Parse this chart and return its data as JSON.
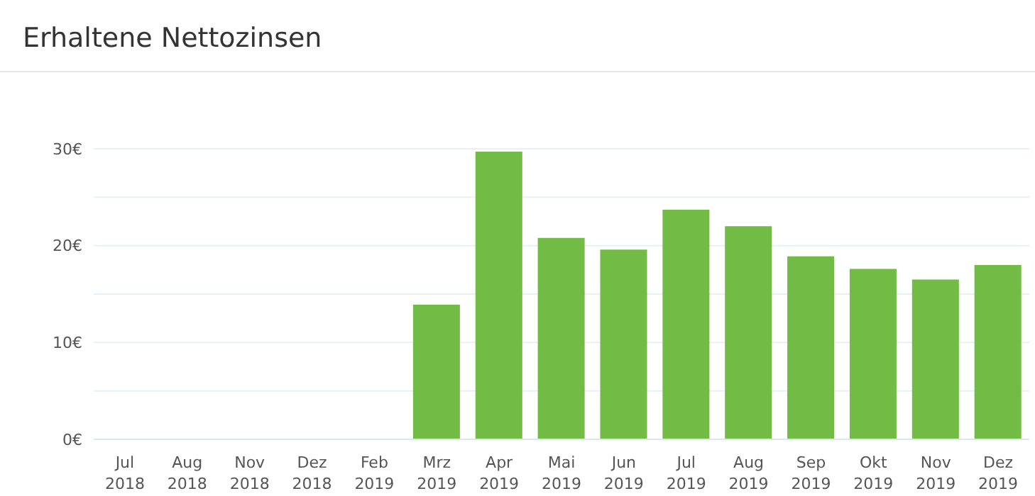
{
  "chart_data": {
    "type": "bar",
    "title": "Erhaltene Nettozinsen",
    "categories": [
      "Jul 2018",
      "Aug 2018",
      "Nov 2018",
      "Dez 2018",
      "Feb 2019",
      "Mrz 2019",
      "Apr 2019",
      "Mai 2019",
      "Jun 2019",
      "Jul 2019",
      "Aug 2019",
      "Sep 2019",
      "Okt 2019",
      "Nov 2019",
      "Dez 2019"
    ],
    "values": [
      0,
      0,
      0,
      0,
      0,
      13.9,
      29.7,
      20.8,
      19.6,
      23.7,
      22.0,
      18.9,
      17.6,
      16.5,
      18.0
    ],
    "color": "#72bb44",
    "ylim": [
      0,
      30
    ],
    "yticks": [
      {
        "value": 0,
        "label": "0€"
      },
      {
        "value": 5,
        "label": null
      },
      {
        "value": 10,
        "label": "10€"
      },
      {
        "value": 15,
        "label": null
      },
      {
        "value": 20,
        "label": "20€"
      },
      {
        "value": 25,
        "label": null
      },
      {
        "value": 30,
        "label": "30€"
      }
    ],
    "grid": "y"
  }
}
